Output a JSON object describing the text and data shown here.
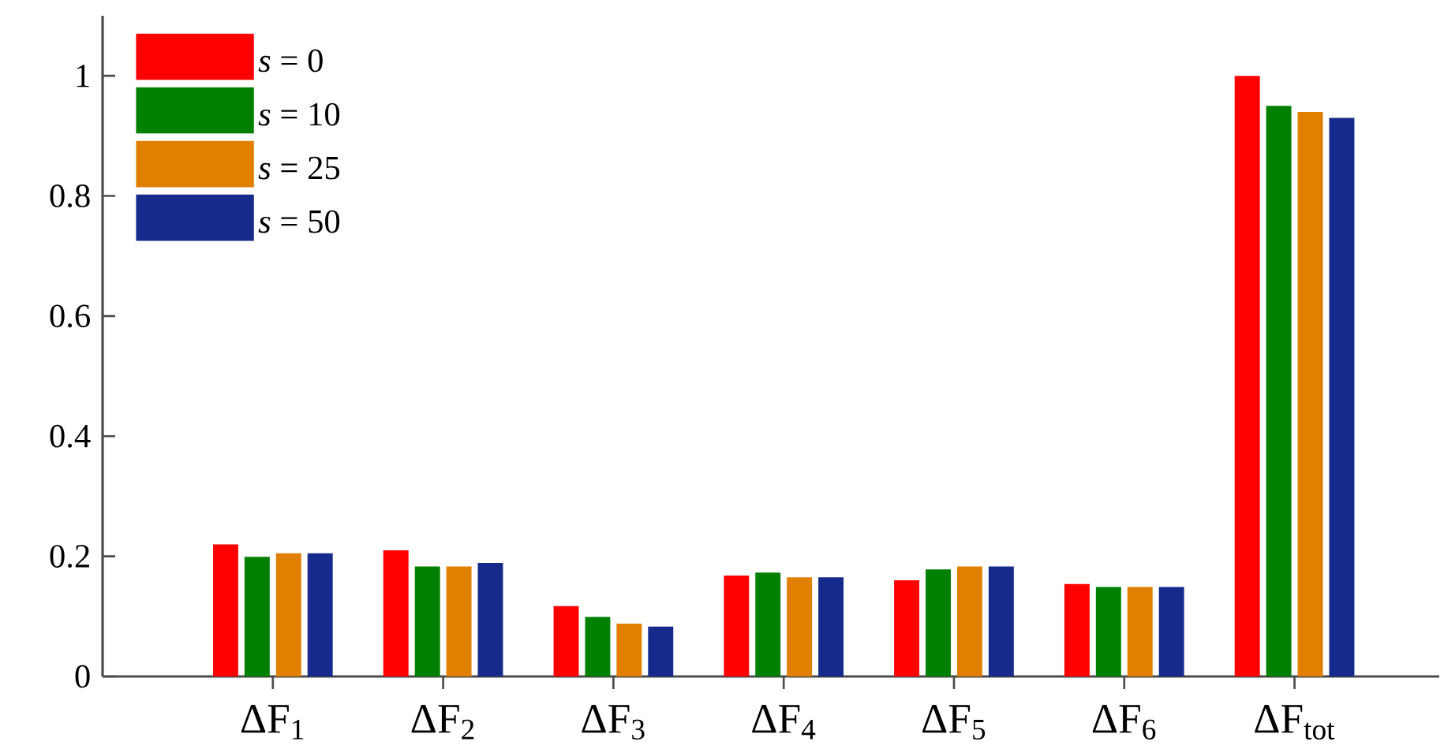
{
  "chart_data": {
    "type": "bar",
    "categories": [
      "ΔF$_{1}$",
      "ΔF$_{2}$",
      "ΔF$_{3}$",
      "ΔF$_{4}$",
      "ΔF$_{5}$",
      "ΔF$_{6}$",
      "ΔF$_{tot}$"
    ],
    "series": [
      {
        "name": "*s* = 0",
        "color": "#ff0000",
        "values": [
          0.22,
          0.21,
          0.117,
          0.168,
          0.16,
          0.154,
          1.0
        ]
      },
      {
        "name": "*s* = 10",
        "color": "#008000",
        "values": [
          0.199,
          0.183,
          0.099,
          0.173,
          0.178,
          0.149,
          0.95
        ]
      },
      {
        "name": "*s* = 25",
        "color": "#e07f00",
        "values": [
          0.205,
          0.183,
          0.088,
          0.165,
          0.183,
          0.149,
          0.94
        ]
      },
      {
        "name": "*s* = 50",
        "color": "#152a8a",
        "values": [
          0.205,
          0.189,
          0.083,
          0.165,
          0.183,
          0.149,
          0.93
        ]
      }
    ],
    "ylim": [
      0,
      1.1
    ],
    "yticks": [
      0,
      0.2,
      0.4,
      0.6,
      0.8,
      1
    ],
    "grid": false,
    "legend": "top left"
  }
}
